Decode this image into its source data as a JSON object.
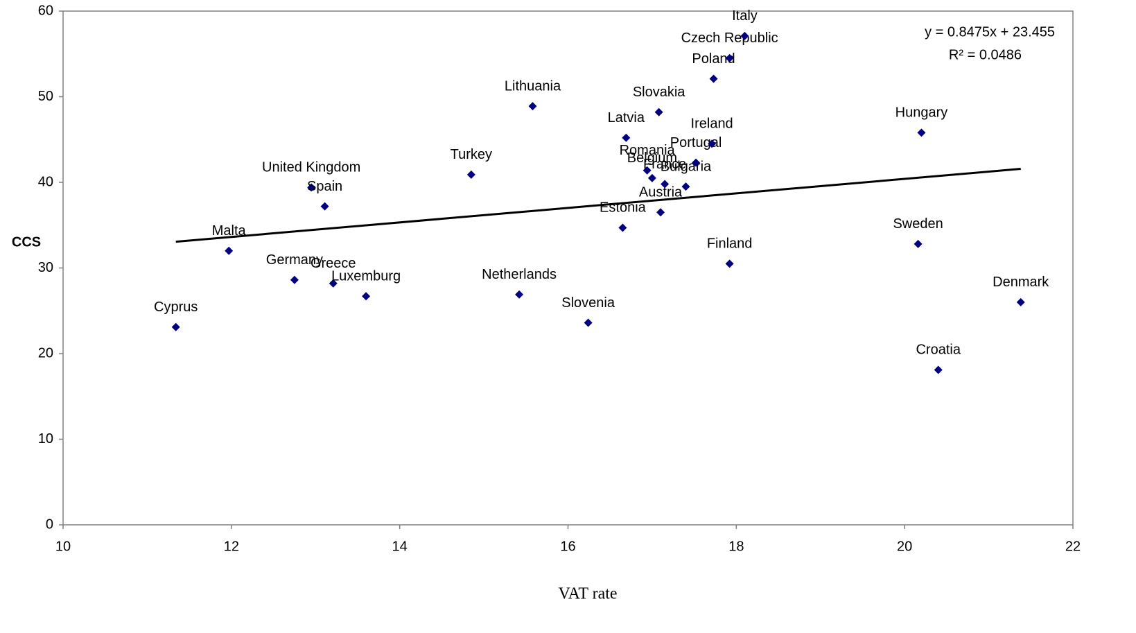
{
  "chart_data": {
    "type": "scatter",
    "x_label": "VAT rate",
    "y_label": "CCS",
    "xlim": [
      10,
      22
    ],
    "xticks": [
      10,
      12,
      14,
      16,
      18,
      20,
      22
    ],
    "ylim": [
      0,
      60
    ],
    "yticks": [
      0,
      10,
      20,
      30,
      40,
      50,
      60
    ],
    "grid": false,
    "series": [
      {
        "color": "#000080",
        "labels": [
          "Cyprus",
          "Malta",
          "Germany",
          "Greece",
          "Luxemburg",
          "United Kingdom",
          "Spain",
          "Turkey",
          "Netherlands",
          "Lithuania",
          "Slovenia",
          "Estonia",
          "Latvia",
          "Romania",
          "Belgium",
          "Slovakia",
          "Austria",
          "France",
          "Bulgaria",
          "Portugal",
          "Ireland",
          "Poland",
          "Finland",
          "Czech Republic",
          "Italy",
          "Sweden",
          "Hungary",
          "Croatia",
          "Denmark"
        ],
        "x": [
          11.34,
          11.97,
          12.75,
          13.21,
          13.6,
          12.95,
          13.11,
          14.85,
          15.42,
          15.58,
          16.24,
          16.65,
          16.69,
          16.94,
          17.0,
          17.08,
          17.1,
          17.15,
          17.4,
          17.52,
          17.71,
          17.73,
          17.92,
          17.92,
          18.1,
          20.16,
          20.2,
          20.4,
          21.38
        ],
        "values": [
          23.1,
          32.0,
          28.6,
          28.2,
          26.7,
          39.4,
          37.2,
          40.9,
          26.9,
          48.9,
          23.6,
          34.7,
          45.2,
          41.4,
          40.5,
          48.2,
          36.5,
          39.8,
          39.5,
          42.3,
          44.5,
          52.1,
          30.5,
          54.5,
          57.1,
          32.8,
          45.8,
          18.1,
          26.0
        ]
      }
    ],
    "trendline": {
      "slope": 0.8475,
      "intercept": 23.455,
      "color": "#000000",
      "equation": "y = 0.8475x + 23.455",
      "r_squared": "R² = 0.0486"
    }
  }
}
